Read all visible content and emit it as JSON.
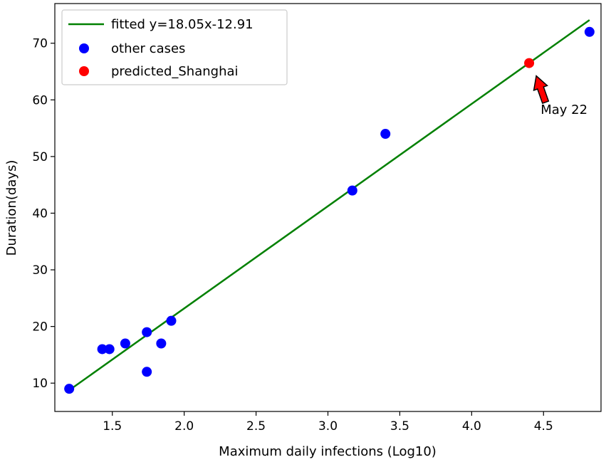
{
  "chart_data": {
    "type": "scatter",
    "xlabel": "Maximum daily infections (Log10)",
    "ylabel": "Duration(days)",
    "xlim": [
      1.1,
      4.9
    ],
    "ylim": [
      5,
      77
    ],
    "x_ticks": [
      1.5,
      2.0,
      2.5,
      3.0,
      3.5,
      4.0,
      4.5
    ],
    "x_tick_labels": [
      "1.5",
      "2.0",
      "2.5",
      "3.0",
      "3.5",
      "4.0",
      "4.5"
    ],
    "y_ticks": [
      10,
      20,
      30,
      40,
      50,
      60,
      70
    ],
    "y_tick_labels": [
      "10",
      "20",
      "30",
      "40",
      "50",
      "60",
      "70"
    ],
    "grid": false,
    "legend_position": "top-left",
    "fit": {
      "name": "fitted y=18.05x-12.91",
      "slope": 18.05,
      "intercept": -12.91,
      "x_range": [
        1.2,
        4.82
      ],
      "color": "#008000"
    },
    "series": [
      {
        "name": "other cases",
        "color": "#0000ff",
        "points": [
          {
            "x": 1.2,
            "y": 9
          },
          {
            "x": 1.43,
            "y": 16
          },
          {
            "x": 1.48,
            "y": 16
          },
          {
            "x": 1.59,
            "y": 17
          },
          {
            "x": 1.74,
            "y": 19
          },
          {
            "x": 1.74,
            "y": 12
          },
          {
            "x": 1.84,
            "y": 17
          },
          {
            "x": 1.91,
            "y": 21
          },
          {
            "x": 3.17,
            "y": 44
          },
          {
            "x": 3.4,
            "y": 54
          },
          {
            "x": 4.82,
            "y": 72
          }
        ]
      },
      {
        "name": "predicted_Shanghai",
        "color": "#ff0000",
        "points": [
          {
            "x": 4.4,
            "y": 66.5
          }
        ]
      }
    ],
    "annotation": {
      "text": "May 22",
      "target": {
        "x": 4.4,
        "y": 66.5
      },
      "text_at": {
        "x": 4.48,
        "y": 57.5
      },
      "arrow_color": "#ff0000"
    }
  }
}
